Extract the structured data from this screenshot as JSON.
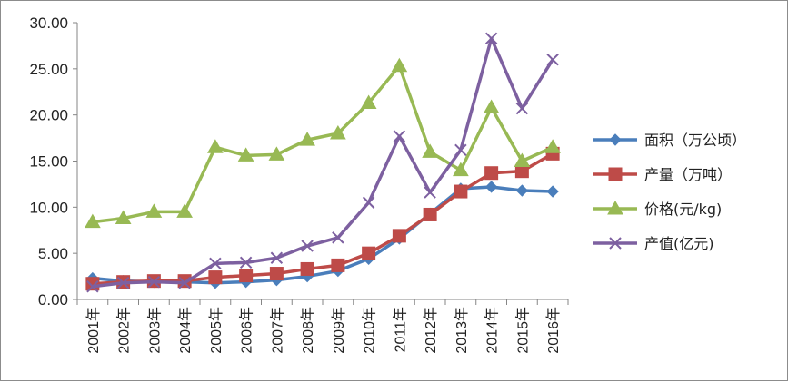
{
  "chart_data": {
    "type": "line",
    "x": [
      "2001年",
      "2002年",
      "2003年",
      "2004年",
      "2005年",
      "2006年",
      "2007年",
      "2008年",
      "2009年",
      "2010年",
      "2011年",
      "2012年",
      "2013年",
      "2014年",
      "2015年",
      "2016年"
    ],
    "y_ticks": [
      "0.00",
      "5.00",
      "10.00",
      "15.00",
      "20.00",
      "25.00",
      "30.00"
    ],
    "ylim": [
      0,
      30
    ],
    "grid": false,
    "legend_position": "right",
    "series": [
      {
        "name": "面积（万公顷）",
        "color": "#4a7ebb",
        "marker": "diamond",
        "values": [
          2.3,
          2.0,
          1.9,
          1.9,
          1.8,
          1.9,
          2.1,
          2.5,
          3.1,
          4.4,
          6.6,
          9.3,
          12.0,
          12.2,
          11.8,
          11.7
        ]
      },
      {
        "name": "产量（万吨）",
        "color": "#be4b48",
        "marker": "square",
        "values": [
          1.7,
          1.9,
          2.0,
          2.0,
          2.4,
          2.6,
          2.8,
          3.3,
          3.7,
          5.0,
          6.9,
          9.2,
          11.7,
          13.7,
          13.9,
          15.8
        ]
      },
      {
        "name": "价格(元/kg)",
        "color": "#98b954",
        "marker": "triangle",
        "values": [
          8.4,
          8.8,
          9.5,
          9.5,
          16.5,
          15.6,
          15.7,
          17.3,
          18.0,
          21.3,
          25.3,
          16.0,
          14.0,
          20.8,
          15.0,
          16.5
        ]
      },
      {
        "name": "产值(亿元)",
        "color": "#7d60a0",
        "marker": "x",
        "values": [
          1.4,
          1.8,
          1.9,
          1.8,
          3.9,
          4.0,
          4.5,
          5.8,
          6.7,
          10.5,
          17.7,
          11.6,
          16.2,
          28.3,
          20.7,
          26.0
        ]
      }
    ]
  }
}
